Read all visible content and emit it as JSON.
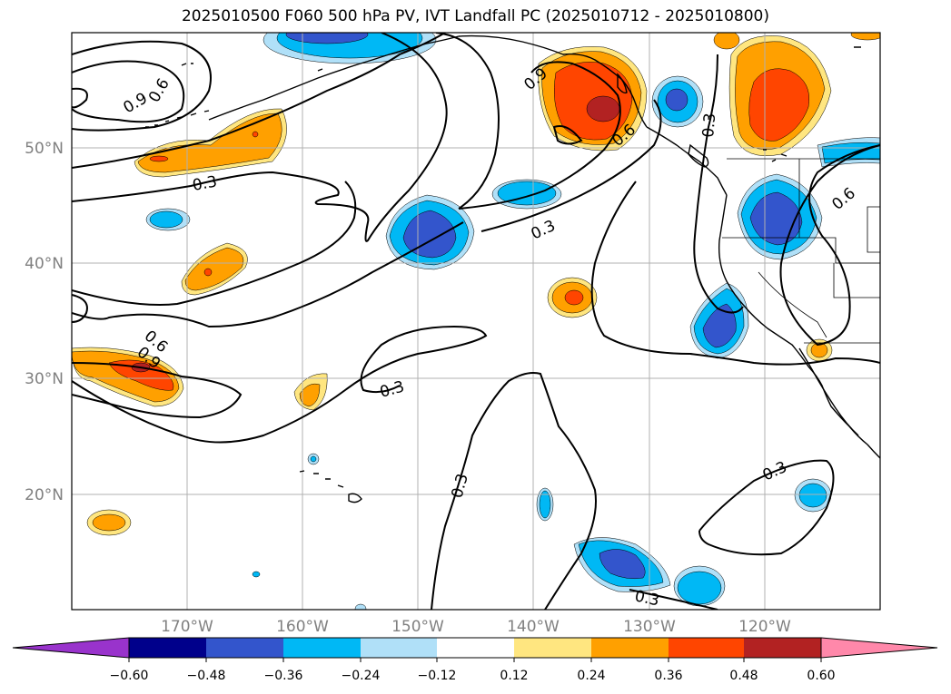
{
  "title": "2025010500 F060 500 hPa PV, IVT Landfall PC (2025010712 - 2025010800)",
  "map": {
    "lon_labels": [
      "170°W",
      "160°W",
      "150°W",
      "140°W",
      "130°W",
      "120°W"
    ],
    "lat_labels": [
      "50°N",
      "40°N",
      "30°N",
      "20°N"
    ],
    "contour_labels": [
      "0.9",
      "0.6",
      "0.3",
      "0.3",
      "0.9",
      "0.6",
      "0.9",
      "0.6",
      "0.3",
      "0.3",
      "0.3",
      "0.3",
      "0.3",
      "0.6",
      "0.3",
      "0.3"
    ]
  },
  "colorbar": {
    "tick_labels": [
      "−0.60",
      "−0.48",
      "−0.36",
      "−0.24",
      "−0.12",
      "0.12",
      "0.24",
      "0.36",
      "0.48",
      "0.60"
    ],
    "colors": [
      "#9933cc",
      "#00008b",
      "#3355cc",
      "#00b8f5",
      "#b0e0f8",
      "#ffffff",
      "#ffe680",
      "#ffa000",
      "#ff4500",
      "#b22222",
      "#ff88aa"
    ]
  },
  "palette": {
    "lt_blue": "#b0e0f8",
    "blue": "#00b8f5",
    "dk_blue": "#3355cc",
    "yellow": "#ffe680",
    "orange": "#ffa000",
    "red": "#ff4500",
    "dk_red": "#b22222"
  }
}
